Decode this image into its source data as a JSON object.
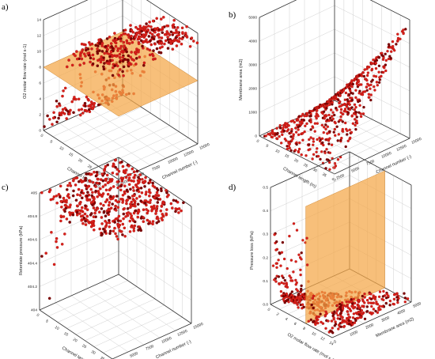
{
  "figure": {
    "panels": [
      {
        "letter": "a)"
      },
      {
        "letter": "b)"
      },
      {
        "letter": "c)"
      },
      {
        "letter": "d)"
      }
    ]
  },
  "colors": {
    "points": "#d9201a",
    "points_dark": "#7a0000",
    "plane": "#f4a646",
    "background": "#ffffff"
  },
  "chart_data": [
    {
      "type": "scatter",
      "panel": "a)",
      "title": "",
      "xlabel": "Channel length (m)",
      "ylabel": "Channel number (-)",
      "zlabel": "O2 molar flow rate (mol s-1)",
      "x_ticks": [
        "0",
        "5",
        "10",
        "15",
        "20",
        "25",
        "30",
        "35",
        "40"
      ],
      "y_ticks": [
        "2500",
        "5000",
        "7500",
        "10000",
        "12500",
        "15000"
      ],
      "z_ticks": [
        "0",
        "2",
        "4",
        "6",
        "8",
        "10",
        "12",
        "14"
      ],
      "xlim": [
        0,
        40
      ],
      "ylim": [
        2500,
        15000
      ],
      "zlim": [
        0,
        14
      ],
      "plane_z": 8,
      "surface": "sigmoid rise of O2 flow with channel length; saturates near 14"
    },
    {
      "type": "scatter",
      "panel": "b)",
      "title": "",
      "xlabel": "Channel length (m)",
      "ylabel": "Channel number (-)",
      "zlabel": "Membrane area (m2)",
      "x_ticks": [
        "0",
        "5",
        "10",
        "15",
        "20",
        "25",
        "30",
        "35",
        "40"
      ],
      "y_ticks": [
        "2500",
        "5000",
        "7500",
        "10000",
        "12500",
        "15000"
      ],
      "z_ticks": [
        "0",
        "1000",
        "2000",
        "3000",
        "4000",
        "5000"
      ],
      "xlim": [
        0,
        40
      ],
      "ylim": [
        2500,
        15000
      ],
      "zlim": [
        0,
        5500
      ],
      "surface": "membrane area grows with channel length x channel number; max ~5300"
    },
    {
      "type": "scatter",
      "panel": "c)",
      "title": "",
      "xlabel": "Channel length (m)",
      "ylabel": "Channel number (-)",
      "zlabel": "Retentate pressure (kPa)",
      "x_ticks": [
        "0",
        "5",
        "10",
        "15",
        "20",
        "25",
        "30",
        "35",
        "40"
      ],
      "y_ticks": [
        "2500",
        "5000",
        "7500",
        "10000",
        "12500",
        "15000"
      ],
      "z_ticks": [
        "404",
        "404.2",
        "404.4",
        "404.6",
        "404.8",
        "405"
      ],
      "xlim": [
        0,
        40
      ],
      "ylim": [
        2500,
        15000
      ],
      "zlim": [
        404,
        405
      ],
      "surface": "retentate pressure near 405 kPa, drops at short length / low channel number"
    },
    {
      "type": "scatter",
      "panel": "d)",
      "title": "",
      "xlabel": "O2 molar flow rate (mol s-1)",
      "ylabel": "Membrane area (m2)",
      "zlabel": "Pressure loss (kPa)",
      "x_ticks": [
        "0",
        "2",
        "4",
        "6",
        "8",
        "10",
        "12",
        "14"
      ],
      "y_ticks": [
        "0",
        "1000",
        "2000",
        "3000",
        "4000",
        "5000"
      ],
      "z_ticks": [
        "0.0",
        "0.1",
        "0.2",
        "0.3",
        "0.4",
        "0.5"
      ],
      "xlim": [
        0,
        14
      ],
      "ylim": [
        0,
        5500
      ],
      "zlim": [
        0,
        0.55
      ],
      "plane_x": 8,
      "surface": "pressure loss low over the range, rising at small membrane area"
    }
  ]
}
